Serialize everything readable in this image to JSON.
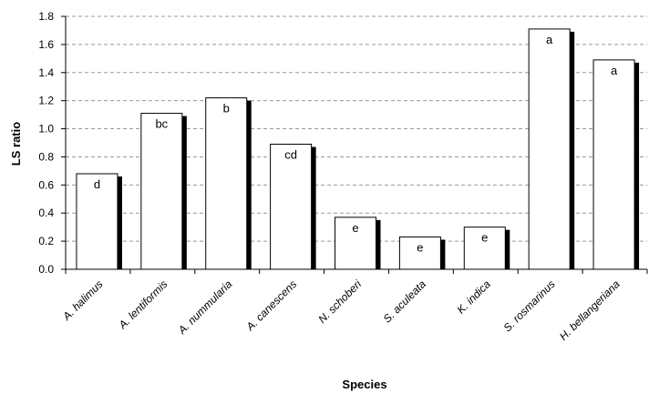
{
  "chart_data": {
    "type": "bar",
    "title": "",
    "xlabel": "Species",
    "ylabel": "LS ratio",
    "ylim": [
      0,
      1.8
    ],
    "yticks": [
      "0.0",
      "0.2",
      "0.4",
      "0.6",
      "0.8",
      "1.0",
      "1.2",
      "1.4",
      "1.6",
      "1.8"
    ],
    "grid": "horizontal dashed",
    "categories": [
      "A. halimus",
      "A. lentiformis",
      "A. nummularia",
      "A. canescens",
      "N. schoberi",
      "S. aculeata",
      "K. indica",
      "S. rosmarinus",
      "H. bellangeriana"
    ],
    "values": [
      0.68,
      1.11,
      1.22,
      0.89,
      0.37,
      0.23,
      0.3,
      1.71,
      1.49
    ],
    "labels": [
      "d",
      "bc",
      "b",
      "cd",
      "e",
      "e",
      "e",
      "a",
      "a"
    ],
    "colors": {
      "bar_fill": "#ffffff",
      "bar_stroke": "#000000",
      "bar_shadow": "#000000",
      "grid": "#999999"
    }
  }
}
